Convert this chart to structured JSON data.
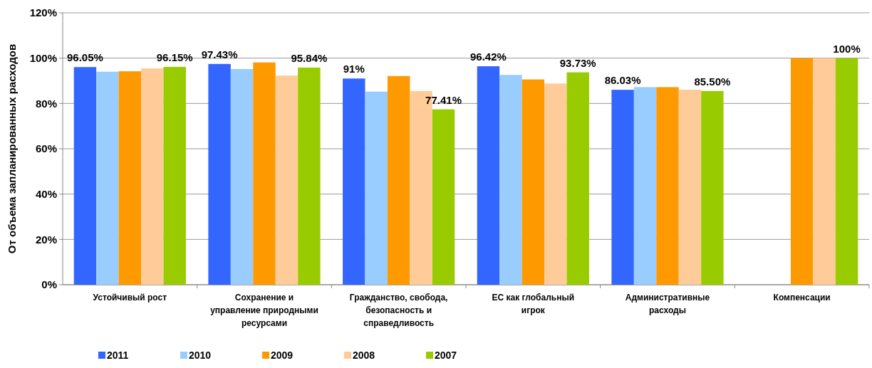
{
  "chart_data": {
    "type": "bar",
    "ylabel": "От объема запланированных расходов",
    "categories": [
      "Устойчивый рост",
      "Сохранение и управление природными ресурсами",
      "Гражданство, свобода, безопасность и справедливость",
      "ЕС как глобальный игрок",
      "Административные расходы",
      "Компенсации"
    ],
    "series": [
      {
        "name": "2011",
        "color": "#3366ff",
        "values": [
          96.05,
          97.43,
          91,
          96.42,
          86.03,
          null
        ],
        "value_labels": [
          "96.05%",
          "97.43%",
          "91%",
          "96.42%",
          "86.03%",
          null
        ]
      },
      {
        "name": "2010",
        "color": "#99ccff",
        "values": [
          94.0,
          95.2,
          85.2,
          92.6,
          87.2,
          null
        ]
      },
      {
        "name": "2009",
        "color": "#ff9900",
        "values": [
          94.2,
          98.1,
          92.1,
          90.6,
          87.2,
          100
        ]
      },
      {
        "name": "2008",
        "color": "#ffcc99",
        "values": [
          95.5,
          92.3,
          85.5,
          88.8,
          86.1,
          100
        ]
      },
      {
        "name": "2007",
        "color": "#99cc00",
        "values": [
          96.15,
          95.84,
          77.41,
          93.73,
          85.5,
          100
        ],
        "value_labels": [
          "96.15%",
          "95.84%",
          "77.41%",
          "93.73%",
          "85.50%",
          "100%"
        ]
      }
    ],
    "ylim": [
      0,
      120
    ],
    "yticks": [
      {
        "value": 0,
        "label": "0%"
      },
      {
        "value": 20,
        "label": "20%"
      },
      {
        "value": 40,
        "label": "40%"
      },
      {
        "value": 60,
        "label": "60%"
      },
      {
        "value": 80,
        "label": "80%"
      },
      {
        "value": 100,
        "label": "100%"
      },
      {
        "value": 120,
        "label": "120%"
      }
    ],
    "grid": "y",
    "legend": "bottom"
  }
}
